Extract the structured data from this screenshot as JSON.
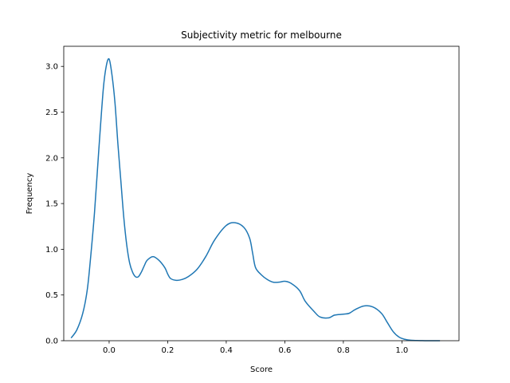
{
  "chart_data": {
    "type": "line",
    "title": "Subjectivity metric for melbourne",
    "xlabel": "Score",
    "ylabel": "Frequency",
    "xlim": [
      -0.155,
      1.195
    ],
    "ylim": [
      0,
      3.22
    ],
    "xticks": [
      0.0,
      0.2,
      0.4,
      0.6,
      0.8,
      1.0
    ],
    "xtick_labels": [
      "0.0",
      "0.2",
      "0.4",
      "0.6",
      "0.8",
      "1.0"
    ],
    "yticks": [
      0.0,
      0.5,
      1.0,
      1.5,
      2.0,
      2.5,
      3.0
    ],
    "ytick_labels": [
      "0.0",
      "0.5",
      "1.0",
      "1.5",
      "2.0",
      "2.5",
      "3.0"
    ],
    "grid": false,
    "color": "#1f77b4",
    "series": [
      {
        "x": [
          -0.13,
          -0.11,
          -0.09,
          -0.075,
          -0.065,
          -0.05,
          -0.035,
          -0.02,
          -0.01,
          0.0,
          0.01,
          0.02,
          0.03,
          0.04,
          0.05,
          0.06,
          0.07,
          0.08,
          0.09,
          0.1,
          0.11,
          0.12,
          0.13,
          0.15,
          0.17,
          0.19,
          0.2,
          0.21,
          0.23,
          0.25,
          0.27,
          0.3,
          0.33,
          0.36,
          0.4,
          0.43,
          0.46,
          0.48,
          0.49,
          0.5,
          0.52,
          0.54,
          0.56,
          0.58,
          0.6,
          0.62,
          0.65,
          0.67,
          0.7,
          0.72,
          0.75,
          0.77,
          0.8,
          0.82,
          0.84,
          0.87,
          0.9,
          0.93,
          0.95,
          0.97,
          0.99,
          1.01,
          1.03,
          1.05,
          1.07,
          1.09,
          1.11,
          1.13
        ],
        "y": [
          0.03,
          0.12,
          0.3,
          0.55,
          0.85,
          1.4,
          2.1,
          2.75,
          3.0,
          3.08,
          2.9,
          2.6,
          2.15,
          1.75,
          1.35,
          1.05,
          0.85,
          0.75,
          0.7,
          0.7,
          0.75,
          0.82,
          0.88,
          0.92,
          0.88,
          0.8,
          0.73,
          0.68,
          0.66,
          0.67,
          0.7,
          0.78,
          0.92,
          1.1,
          1.26,
          1.29,
          1.24,
          1.12,
          0.96,
          0.8,
          0.72,
          0.67,
          0.64,
          0.64,
          0.65,
          0.63,
          0.55,
          0.43,
          0.32,
          0.26,
          0.25,
          0.28,
          0.29,
          0.3,
          0.34,
          0.38,
          0.37,
          0.3,
          0.2,
          0.1,
          0.04,
          0.015,
          0.005,
          0.002,
          0.001,
          0.0,
          0.0,
          0.0
        ]
      }
    ]
  }
}
